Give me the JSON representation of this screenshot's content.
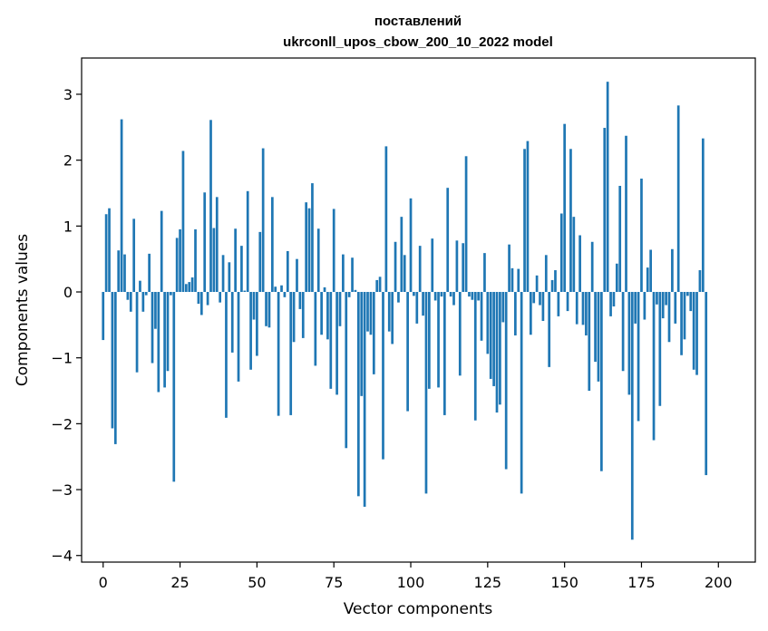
{
  "chart_data": {
    "type": "bar",
    "title_line1": "поставлений",
    "title_line2": "ukrconll_upos_cbow_200_10_2022 model",
    "xlabel": "Vector components",
    "ylabel": "Components values",
    "xlim": [
      -7,
      212
    ],
    "ylim": [
      -4.1,
      3.55
    ],
    "xticks": [
      0,
      25,
      50,
      75,
      100,
      125,
      150,
      175,
      200
    ],
    "yticks": [
      3,
      2,
      1,
      0,
      -1,
      -2,
      -3,
      -4
    ],
    "ytick_labels": [
      "3",
      "2",
      "1",
      "0",
      "−1",
      "−2",
      "−3",
      "−4"
    ],
    "bar_color": "#1f77b4",
    "grid": false,
    "legend": "none",
    "values": [
      -0.73,
      1.18,
      1.27,
      -2.07,
      -2.31,
      0.63,
      2.62,
      0.57,
      -0.12,
      -0.3,
      1.11,
      -1.22,
      0.17,
      -0.3,
      -0.05,
      0.58,
      -1.08,
      -0.56,
      -1.52,
      1.23,
      -1.45,
      -1.2,
      -0.05,
      -2.88,
      0.82,
      0.95,
      2.14,
      0.12,
      0.15,
      0.22,
      0.95,
      -0.18,
      -0.35,
      1.51,
      -0.2,
      2.61,
      0.97,
      1.44,
      -0.16,
      0.56,
      -1.91,
      0.45,
      -0.92,
      0.96,
      -1.36,
      0.7,
      0.02,
      1.53,
      -1.18,
      -0.42,
      -0.97,
      0.91,
      2.18,
      -0.52,
      -0.54,
      1.44,
      0.08,
      -1.88,
      0.1,
      -0.08,
      0.62,
      -1.87,
      -0.76,
      0.5,
      -0.26,
      -0.7,
      1.36,
      1.27,
      1.65,
      -1.12,
      0.96,
      -0.65,
      0.07,
      -0.72,
      -1.47,
      1.26,
      -1.56,
      -0.52,
      0.57,
      -2.37,
      -0.08,
      0.52,
      0.03,
      -3.1,
      -1.58,
      -3.26,
      -0.6,
      -0.65,
      -1.25,
      0.18,
      0.23,
      -2.54,
      2.21,
      -0.6,
      -0.79,
      0.76,
      -0.16,
      1.14,
      0.56,
      -1.81,
      1.42,
      -0.06,
      -0.48,
      0.7,
      -0.36,
      -3.06,
      -1.47,
      0.81,
      -0.13,
      -1.45,
      -0.07,
      -1.87,
      1.58,
      -0.07,
      -0.2,
      0.78,
      -1.27,
      0.74,
      2.06,
      -0.07,
      -0.12,
      -1.95,
      -0.13,
      -0.74,
      0.59,
      -0.94,
      -1.32,
      -1.43,
      -1.83,
      -1.71,
      -0.46,
      -2.69,
      0.72,
      0.36,
      -0.66,
      0.35,
      -3.06,
      2.17,
      2.29,
      -0.65,
      -0.17,
      0.25,
      -0.2,
      -0.44,
      0.56,
      -1.14,
      0.18,
      0.33,
      -0.37,
      1.19,
      2.55,
      -0.29,
      2.17,
      1.14,
      -0.49,
      0.86,
      -0.5,
      -0.66,
      -1.5,
      0.76,
      -1.06,
      -1.36,
      -2.72,
      2.49,
      3.19,
      -0.37,
      -0.22,
      0.43,
      1.61,
      -1.2,
      2.37,
      -1.56,
      -3.76,
      -0.48,
      -1.96,
      1.72,
      -0.42,
      0.37,
      0.64,
      -2.25,
      -0.19,
      -1.73,
      -0.4,
      -0.2,
      -0.76,
      0.65,
      -0.48,
      2.83,
      -0.96,
      -0.72,
      -0.06,
      -0.29,
      -1.18,
      -1.26,
      0.33,
      2.33,
      -2.78
    ]
  }
}
